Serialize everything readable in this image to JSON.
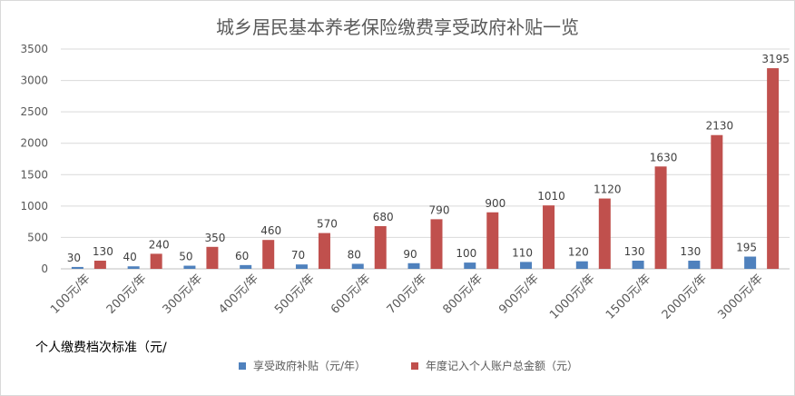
{
  "chart_data": {
    "type": "bar",
    "title": "城乡居民基本养老保险缴费享受政府补贴一览",
    "xlabel": "个人缴费档次标准（元/",
    "ylabel": "",
    "ylim": [
      0,
      3500
    ],
    "yticks": [
      0,
      500,
      1000,
      1500,
      2000,
      2500,
      3000,
      3500
    ],
    "grid": true,
    "legend_position": "bottom",
    "categories": [
      "100元/年",
      "200元/年",
      "300元/年",
      "400元/年",
      "500元/年",
      "600元/年",
      "700元/年",
      "800元/年",
      "900元/年",
      "1000元/年",
      "1500元/年",
      "2000元/年",
      "3000元/年"
    ],
    "series": [
      {
        "name": "享受政府补贴（元/年）",
        "color": "#4f81bd",
        "values": [
          30,
          40,
          50,
          60,
          70,
          80,
          90,
          100,
          110,
          120,
          130,
          130,
          195
        ]
      },
      {
        "name": "年度记入个人账户总金额（元）",
        "color": "#c0504d",
        "values": [
          130,
          240,
          350,
          460,
          570,
          680,
          790,
          900,
          1010,
          1120,
          1630,
          2130,
          3195
        ]
      }
    ]
  }
}
